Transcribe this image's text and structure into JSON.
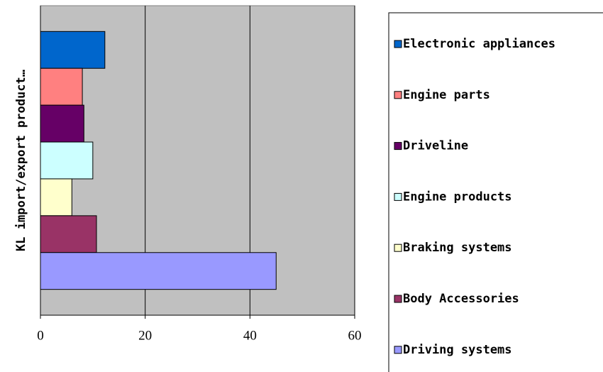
{
  "chart_data": {
    "type": "bar",
    "orientation": "horizontal",
    "y_label": "KL import/export product…",
    "categories": [
      null
    ],
    "series": [
      {
        "name": "Electronic appliances",
        "color": "#0066cc",
        "values": [
          12.3
        ]
      },
      {
        "name": "Engine parts",
        "color": "#ff8080",
        "values": [
          8
        ]
      },
      {
        "name": "Driveline",
        "color": "#660066",
        "values": [
          8.3
        ]
      },
      {
        "name": "Engine products",
        "color": "#ccffff",
        "values": [
          10
        ]
      },
      {
        "name": "Braking systems",
        "color": "#ffffcc",
        "values": [
          6
        ]
      },
      {
        "name": "Body Accessories",
        "color": "#993366",
        "values": [
          10.7
        ]
      },
      {
        "name": "Driving systems",
        "color": "#9999ff",
        "values": [
          45
        ]
      }
    ],
    "xlim": [
      0,
      60
    ],
    "xticks": [
      0,
      20,
      40,
      60
    ],
    "grid": true,
    "legend": "right"
  }
}
